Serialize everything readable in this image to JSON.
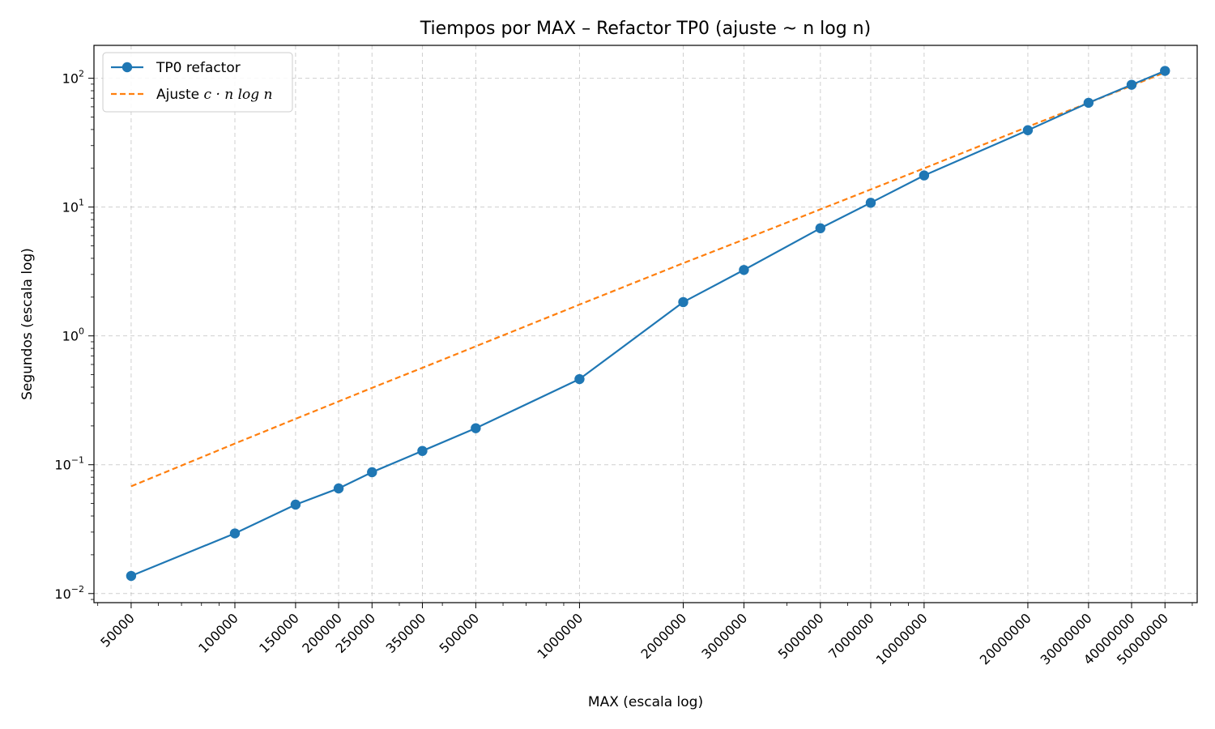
{
  "chart_data": {
    "type": "line",
    "title": "Tiempos por MAX – Refactor TP0 (ajuste ~ n log n)",
    "xlabel": "MAX (escala log)",
    "ylabel": "Segundos (escala log)",
    "xscale": "log",
    "yscale": "log",
    "xlim": [
      39000,
      62000000
    ],
    "ylim": [
      0.0085,
      180
    ],
    "grid": true,
    "legend_position": "top-left",
    "x_ticks": [
      50000,
      100000,
      150000,
      200000,
      250000,
      350000,
      500000,
      1000000,
      2000000,
      3000000,
      5000000,
      7000000,
      10000000,
      20000000,
      30000000,
      40000000,
      50000000
    ],
    "x_tick_labels": [
      "50000",
      "100000",
      "150000",
      "200000",
      "250000",
      "350000",
      "500000",
      "1000000",
      "2000000",
      "3000000",
      "5000000",
      "7000000",
      "10000000",
      "20000000",
      "30000000",
      "40000000",
      "50000000"
    ],
    "y_ticks": [
      0.01,
      0.1,
      1,
      10,
      100
    ],
    "y_tick_exponents": [
      "−2",
      "−1",
      "0",
      "1",
      "2"
    ],
    "y_tick_base": "10",
    "x": [
      50000,
      100000,
      150000,
      200000,
      250000,
      350000,
      500000,
      1000000,
      2000000,
      3000000,
      5000000,
      7000000,
      10000000,
      20000000,
      30000000,
      40000000,
      50000000
    ],
    "series": [
      {
        "name": "TP0 refactor",
        "color": "#1f77b4",
        "style": "solid-markers",
        "values": [
          0.0137,
          0.0293,
          0.049,
          0.0655,
          0.0875,
          0.128,
          0.192,
          0.462,
          1.83,
          3.25,
          6.85,
          10.8,
          17.6,
          39.5,
          64.5,
          89.0,
          114.0
        ]
      },
      {
        "name_prefix": "Ajuste ",
        "name_math": "c · n log n",
        "color": "#ff7f0e",
        "style": "dashed",
        "values": [
          0.068,
          0.146,
          0.227,
          0.31,
          0.395,
          0.565,
          0.83,
          1.75,
          3.67,
          5.6,
          9.6,
          13.7,
          20.0,
          42.0,
          64.5,
          87.5,
          111.0
        ]
      }
    ]
  }
}
